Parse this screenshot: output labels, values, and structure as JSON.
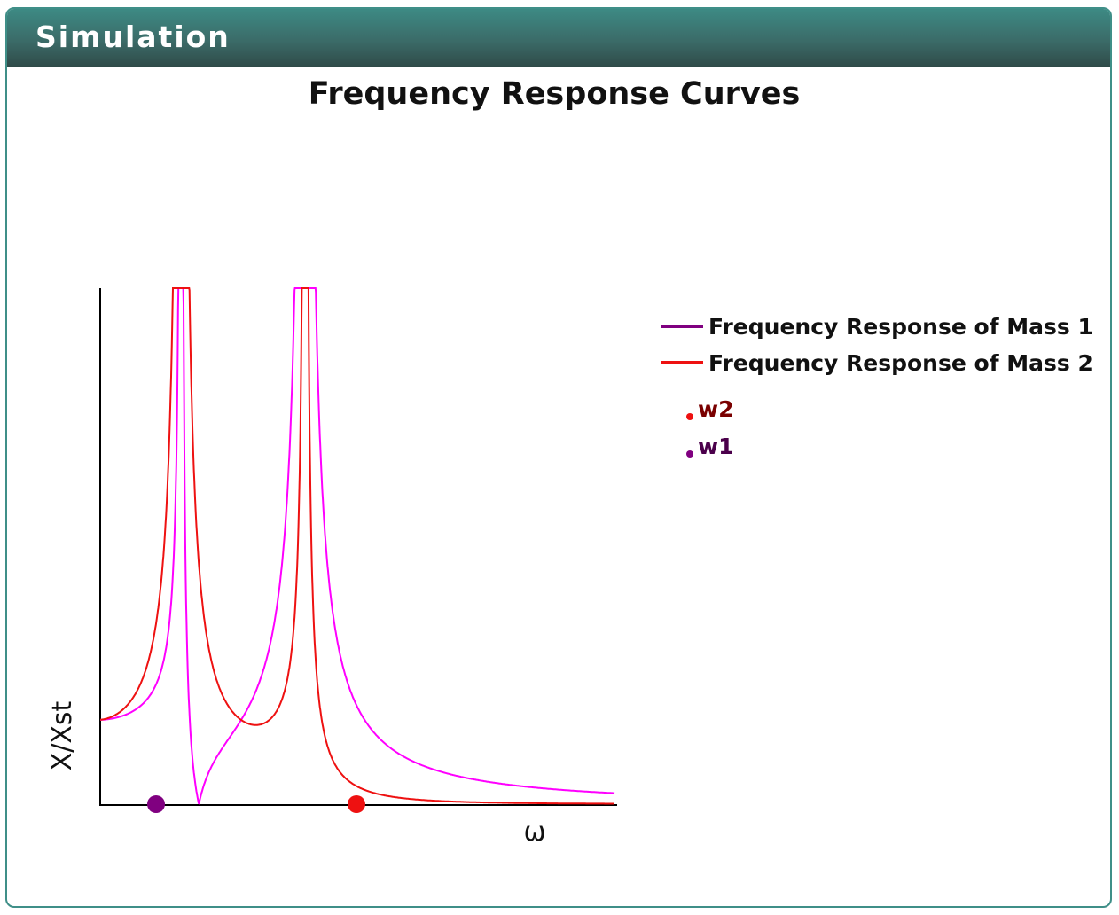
{
  "panel": {
    "title": "Simulation"
  },
  "chart_data": {
    "type": "line",
    "title": "Frequency Response Curves",
    "xlabel": "ω",
    "ylabel": "X/Xst",
    "grid": false,
    "legend_position": "right",
    "legend": [
      {
        "label": "Frequency Response of Mass 1",
        "color": "#800080"
      },
      {
        "label": "Frequency Response of Mass 2",
        "color": "#ee1111"
      }
    ],
    "markers": [
      {
        "label": "w2",
        "color": "#ee1111",
        "text_color": "#7a0000",
        "x": 0.5
      },
      {
        "label": "w1",
        "color": "#800080",
        "text_color": "#4b004b",
        "x": 0.11
      }
    ],
    "series": [
      {
        "color": "#ff00ff",
        "description_shown": false
      },
      {
        "color": "#ee1111",
        "description_shown": false
      }
    ]
  }
}
